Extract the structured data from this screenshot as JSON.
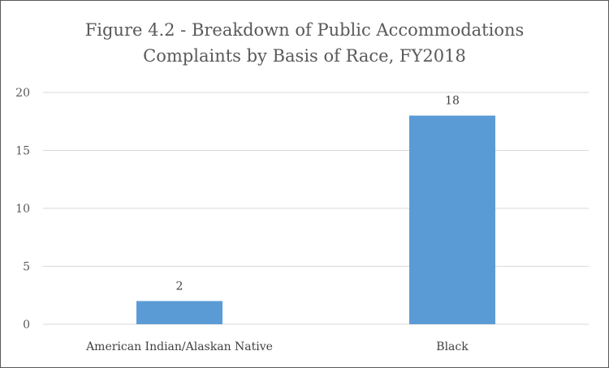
{
  "chart_data": {
    "type": "bar",
    "title_line1": "Figure 4.2 - Breakdown of Public Accommodations",
    "title_line2": "Complaints by Basis of Race, FY2018",
    "categories": [
      "American Indian/Alaskan Native",
      "Black"
    ],
    "values": [
      2,
      18
    ],
    "data_labels": [
      "2",
      "18"
    ],
    "xlabel": "",
    "ylabel": "",
    "ylim": [
      0,
      20
    ],
    "yticks": [
      "0",
      "5",
      "10",
      "15",
      "20"
    ],
    "grid": true,
    "legend": "none",
    "bar_color": "#5B9BD5",
    "grid_color": "#D9D9D9"
  }
}
